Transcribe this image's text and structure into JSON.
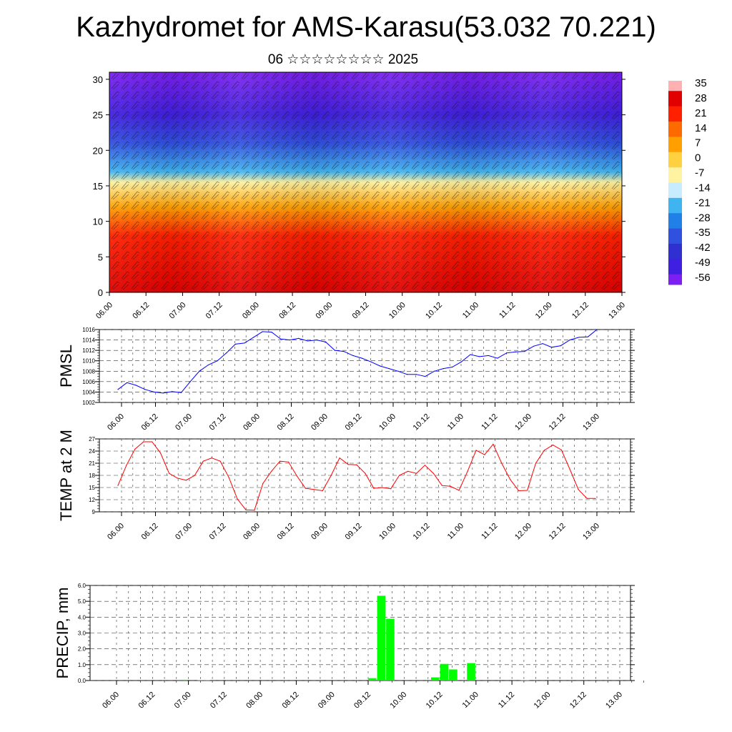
{
  "title": "Kazhydromet for AMS-Karasu(53.032 70.221)",
  "subtitle": "06 ☆☆☆☆☆☆☆☆ 2025",
  "chart_data": [
    {
      "type": "heatmap",
      "name": "cross-section",
      "x_ticks": [
        "06.00",
        "06.12",
        "07.00",
        "07.12",
        "08.00",
        "08.12",
        "09.00",
        "09.12",
        "10.00",
        "10.12",
        "11.00",
        "11.12",
        "12.00",
        "12.12",
        "13.00"
      ],
      "y_ticks": [
        "0",
        "5",
        "10",
        "15",
        "20",
        "25",
        "30"
      ],
      "ylim": [
        0,
        31
      ],
      "colorbar_labels": [
        "35",
        "28",
        "21",
        "14",
        "7",
        "0",
        "-7",
        "-14",
        "-21",
        "-28",
        "-35",
        "-42",
        "-49",
        "-56"
      ],
      "colors": {
        "hot": "#d20000",
        "warm": "#ff8000",
        "yellow": "#ffe680",
        "cool": "#40a8ff",
        "cold": "#2020e0",
        "coldest": "#7b20f0"
      },
      "vertical_profile": [
        {
          "y": 0,
          "value": 28
        },
        {
          "y": 8,
          "value": 21
        },
        {
          "y": 12,
          "value": 7
        },
        {
          "y": 15.5,
          "value": -7
        },
        {
          "y": 17,
          "value": -21
        },
        {
          "y": 21,
          "value": -35
        },
        {
          "y": 25,
          "value": -49
        },
        {
          "y": 31,
          "value": -56
        }
      ]
    },
    {
      "type": "line",
      "ylabel": "PMSL",
      "color": "#0000ff",
      "ylim": [
        1002,
        1016
      ],
      "y_ticks": [
        "1016",
        "1014",
        "1012",
        "1010",
        "1008",
        "1006",
        "1004",
        "1002"
      ],
      "x_ticks": [
        "06.00",
        "06.12",
        "07.00",
        "07.12",
        "08.00",
        "08.12",
        "09.00",
        "09.12",
        "10.00",
        "10.12",
        "11.00",
        "11.12",
        "12.00",
        "12.12",
        "13.00"
      ],
      "values": [
        1004.5,
        1005.8,
        1005.3,
        1004.5,
        1004.0,
        1003.8,
        1004.1,
        1003.9,
        1006.0,
        1008.0,
        1009.2,
        1010.0,
        1011.5,
        1013.2,
        1013.4,
        1014.5,
        1015.6,
        1015.5,
        1014.2,
        1014.0,
        1014.3,
        1013.8,
        1014.0,
        1013.6,
        1012.0,
        1011.8,
        1011.0,
        1010.5,
        1009.8,
        1009.0,
        1008.5,
        1008.0,
        1007.4,
        1007.4,
        1007.0,
        1008.0,
        1008.5,
        1008.8,
        1009.8,
        1011.2,
        1010.8,
        1011.0,
        1010.5,
        1011.5,
        1011.7,
        1011.8,
        1012.8,
        1013.3,
        1012.6,
        1012.9,
        1014.0,
        1014.5,
        1014.6,
        1016.0
      ],
      "series": [
        {
          "name": "PMSL"
        }
      ]
    },
    {
      "type": "line",
      "ylabel": "TEMP at 2 M",
      "color": "#ff0000",
      "ylim": [
        9,
        27
      ],
      "y_ticks": [
        "27",
        "24",
        "21",
        "18",
        "15",
        "12",
        "9"
      ],
      "x_ticks": [
        "06.00",
        "06.12",
        "07.00",
        "07.12",
        "08.00",
        "08.12",
        "09.00",
        "09.12",
        "10.00",
        "10.12",
        "11.00",
        "11.12",
        "12.00",
        "12.12",
        "13.00"
      ],
      "values": [
        15.5,
        20.5,
        24.5,
        26.3,
        26.3,
        23.5,
        18.5,
        17.3,
        16.8,
        18.0,
        21.5,
        22.3,
        21.5,
        17.5,
        12.2,
        9.5,
        9.4,
        16.0,
        19.0,
        21.5,
        21.3,
        17.8,
        14.8,
        14.5,
        14.2,
        18.0,
        22.3,
        20.7,
        20.6,
        18.5,
        14.8,
        15.0,
        14.7,
        18.0,
        19.0,
        18.5,
        20.5,
        18.5,
        15.5,
        15.3,
        14.3,
        19.0,
        24.2,
        23.1,
        25.7,
        21.0,
        17.0,
        14.2,
        14.3,
        21.0,
        24.2,
        25.5,
        24.3,
        19.5,
        14.5,
        12.3,
        12.3
      ],
      "series": [
        {
          "name": "TEMP at 2 M"
        }
      ]
    },
    {
      "type": "bar",
      "ylabel": "PRECIP, mm",
      "color": "#00ff00",
      "ylim": [
        0,
        6
      ],
      "y_ticks": [
        "6.0",
        "5.0",
        "4.0",
        "3.0",
        "2.0",
        "1.0",
        "0.0"
      ],
      "x_ticks": [
        "06.00",
        "06.12",
        "07.00",
        "07.12",
        "08.00",
        "08.12",
        "09.00",
        "09.12",
        "10.00",
        "10.12",
        "11.00",
        "11.12",
        "12.00",
        "12.12",
        "13.00"
      ],
      "bars": [
        {
          "x": 14,
          "value": 0.05
        },
        {
          "x": 18,
          "value": 0.03
        },
        {
          "x": 19,
          "value": 0.03
        },
        {
          "x": 56,
          "value": 0.15
        },
        {
          "x": 58,
          "value": 5.35
        },
        {
          "x": 60,
          "value": 3.9
        },
        {
          "x": 70,
          "value": 0.2
        },
        {
          "x": 72,
          "value": 1.05
        },
        {
          "x": 74,
          "value": 0.7
        },
        {
          "x": 78,
          "value": 1.1
        },
        {
          "x": 90,
          "value": 0.03
        }
      ]
    }
  ]
}
